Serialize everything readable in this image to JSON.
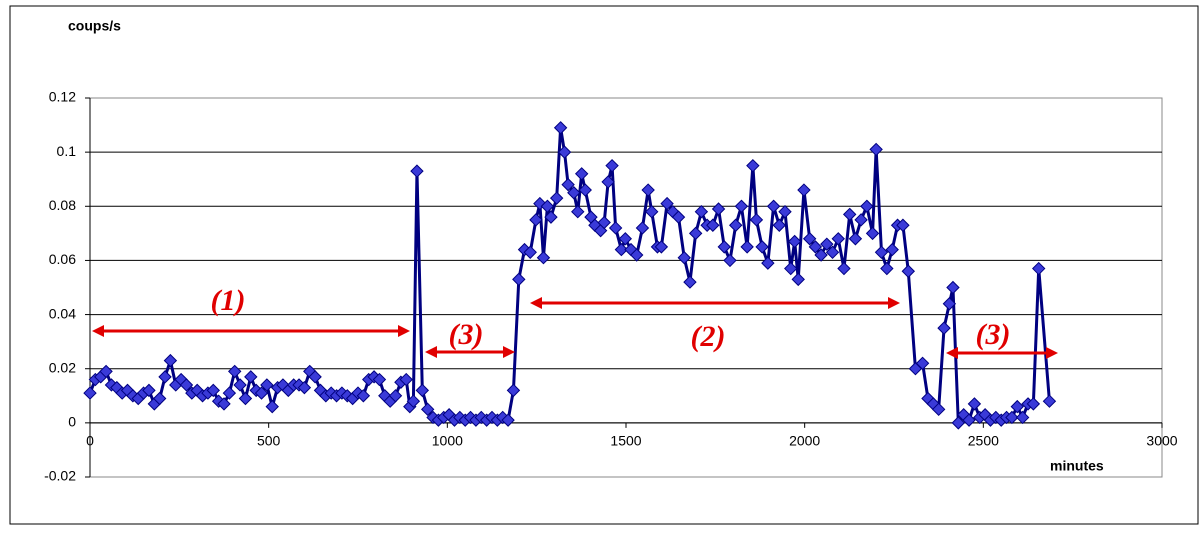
{
  "chart_data": {
    "type": "line",
    "y_label": "coups/s",
    "x_label": "minutes",
    "x": [
      0,
      15,
      30,
      45,
      60,
      75,
      90,
      105,
      120,
      135,
      150,
      165,
      180,
      195,
      210,
      225,
      240,
      255,
      270,
      285,
      300,
      315,
      330,
      345,
      360,
      375,
      390,
      405,
      420,
      435,
      450,
      465,
      480,
      495,
      510,
      525,
      540,
      555,
      570,
      585,
      600,
      615,
      630,
      645,
      660,
      675,
      690,
      705,
      720,
      735,
      750,
      765,
      780,
      795,
      810,
      825,
      840,
      855,
      870,
      885,
      895,
      905,
      915,
      930,
      945,
      960,
      975,
      990,
      1005,
      1020,
      1035,
      1050,
      1065,
      1080,
      1095,
      1110,
      1125,
      1140,
      1155,
      1170,
      1185,
      1200,
      1216,
      1232,
      1248,
      1259,
      1269,
      1280,
      1290,
      1306,
      1317,
      1328,
      1338,
      1354,
      1365,
      1376,
      1386,
      1402,
      1413,
      1429,
      1439,
      1450,
      1461,
      1471,
      1487,
      1498,
      1514,
      1530,
      1546,
      1562,
      1572,
      1588,
      1599,
      1615,
      1631,
      1647,
      1663,
      1679,
      1695,
      1711,
      1727,
      1743,
      1759,
      1775,
      1791,
      1807,
      1823,
      1839,
      1855,
      1865,
      1881,
      1897,
      1913,
      1929,
      1945,
      1961,
      1972,
      1982,
      1998,
      2014,
      2030,
      2046,
      2062,
      2078,
      2094,
      2110,
      2126,
      2142,
      2158,
      2174,
      2190,
      2200,
      2215,
      2230,
      2245,
      2260,
      2275,
      2290,
      2310,
      2330,
      2345,
      2360,
      2375,
      2390,
      2405,
      2415,
      2430,
      2445,
      2460,
      2475,
      2490,
      2505,
      2520,
      2535,
      2550,
      2565,
      2580,
      2595,
      2610,
      2625,
      2640,
      2655,
      2685
    ],
    "series": [
      {
        "color": "#000080",
        "marker_color": "#3a3ad8",
        "values": [
          0.011,
          0.016,
          0.017,
          0.019,
          0.014,
          0.013,
          0.011,
          0.012,
          0.01,
          0.009,
          0.011,
          0.012,
          0.007,
          0.009,
          0.017,
          0.023,
          0.014,
          0.016,
          0.014,
          0.011,
          0.012,
          0.01,
          0.011,
          0.012,
          0.008,
          0.007,
          0.011,
          0.019,
          0.014,
          0.009,
          0.017,
          0.012,
          0.011,
          0.014,
          0.006,
          0.013,
          0.014,
          0.012,
          0.014,
          0.014,
          0.013,
          0.019,
          0.017,
          0.012,
          0.01,
          0.011,
          0.01,
          0.011,
          0.01,
          0.009,
          0.011,
          0.01,
          0.016,
          0.017,
          0.016,
          0.01,
          0.008,
          0.01,
          0.015,
          0.016,
          0.006,
          0.008,
          0.093,
          0.012,
          0.005,
          0.002,
          0.001,
          0.002,
          0.003,
          0.001,
          0.002,
          0.001,
          0.002,
          0.001,
          0.002,
          0.001,
          0.002,
          0.001,
          0.002,
          0.001,
          0.012,
          0.053,
          0.064,
          0.063,
          0.075,
          0.081,
          0.061,
          0.08,
          0.076,
          0.083,
          0.109,
          0.1,
          0.088,
          0.085,
          0.078,
          0.092,
          0.086,
          0.076,
          0.073,
          0.071,
          0.074,
          0.089,
          0.095,
          0.072,
          0.064,
          0.068,
          0.064,
          0.062,
          0.072,
          0.086,
          0.078,
          0.065,
          0.065,
          0.081,
          0.078,
          0.076,
          0.061,
          0.052,
          0.07,
          0.078,
          0.073,
          0.073,
          0.079,
          0.065,
          0.06,
          0.073,
          0.08,
          0.065,
          0.095,
          0.075,
          0.065,
          0.059,
          0.08,
          0.073,
          0.078,
          0.057,
          0.067,
          0.053,
          0.086,
          0.068,
          0.065,
          0.062,
          0.066,
          0.063,
          0.068,
          0.057,
          0.077,
          0.068,
          0.075,
          0.08,
          0.07,
          0.101,
          0.063,
          0.057,
          0.064,
          0.073,
          0.073,
          0.056,
          0.02,
          0.022,
          0.009,
          0.007,
          0.005,
          0.035,
          0.044,
          0.05,
          0.0,
          0.003,
          0.001,
          0.007,
          0.002,
          0.003,
          0.001,
          0.002,
          0.001,
          0.002,
          0.002,
          0.006,
          0.002,
          0.007,
          0.007,
          0.057,
          0.008
        ]
      }
    ],
    "xlim": [
      0,
      3000
    ],
    "xticks": [
      0,
      500,
      1000,
      1500,
      2000,
      2500,
      3000
    ],
    "ylim": [
      -0.02,
      0.12
    ],
    "yticks": [
      -0.02,
      0,
      0.02,
      0.04,
      0.06,
      0.08,
      0.1,
      0.12
    ],
    "grid": true,
    "annotations": [
      "(1)",
      "(3)",
      "(2)",
      "(3)"
    ],
    "annotation_color": "#e00000"
  }
}
